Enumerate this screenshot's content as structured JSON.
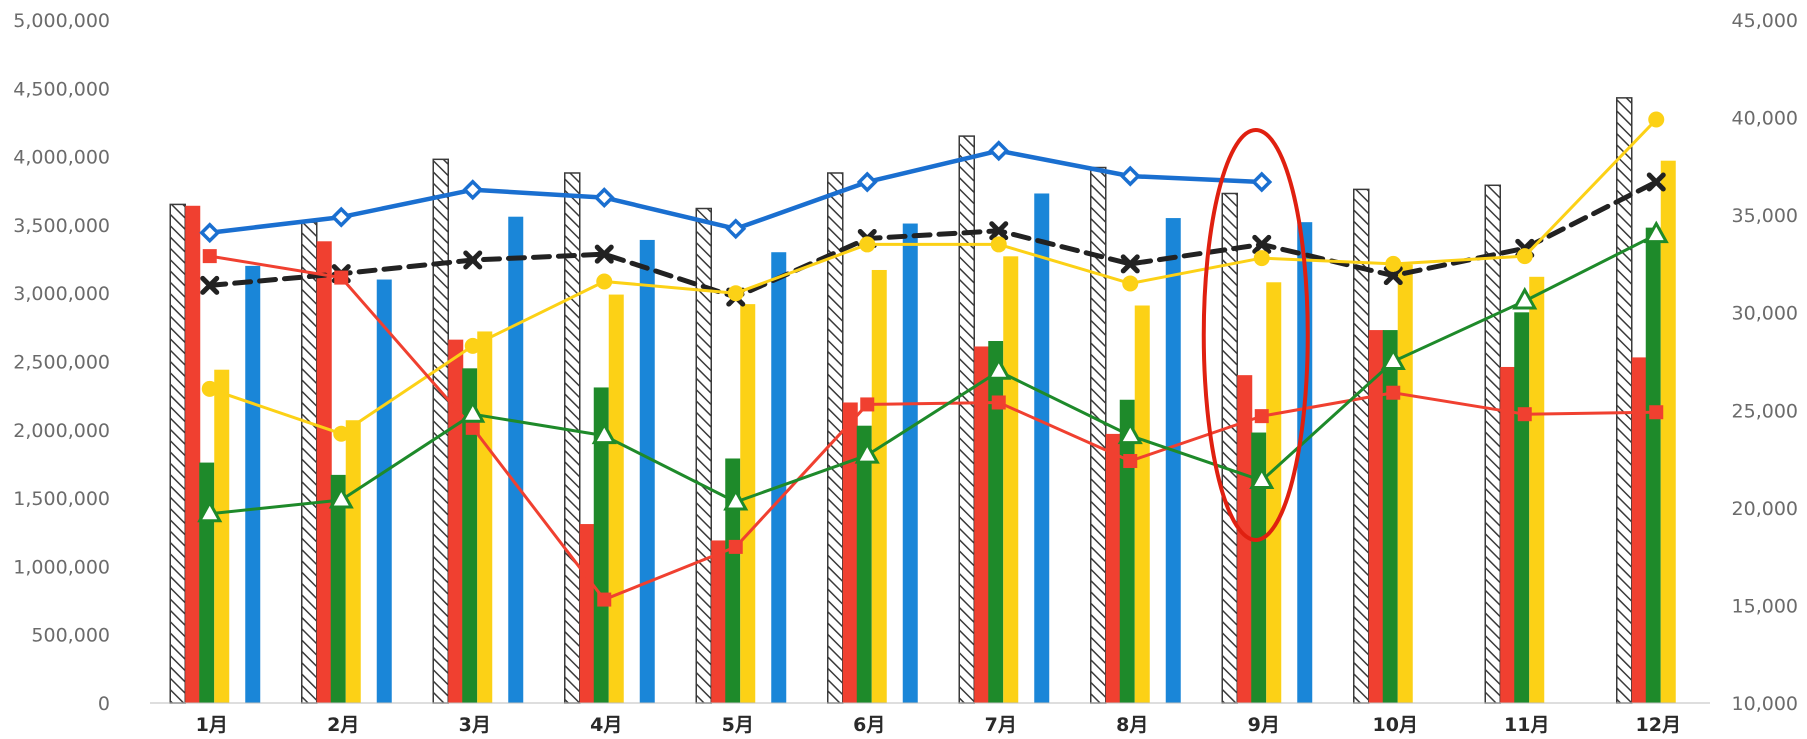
{
  "colors": {
    "hatch_stroke": "#3a3a3a",
    "red": "#f04030",
    "green": "#1e8a2a",
    "yellow": "#fcd116",
    "blue": "#1a86d8",
    "blue_line": "#1a6fd0",
    "black_line": "#222222",
    "highlight_ellipse": "#e02010",
    "text_axis": "#6b6b6b",
    "text_x": "#2a2a2a"
  },
  "chart_data": {
    "type": "bar",
    "categories": [
      "1月",
      "2月",
      "3月",
      "4月",
      "5月",
      "6月",
      "7月",
      "8月",
      "9月",
      "10月",
      "11月",
      "12月"
    ],
    "y_left": {
      "lim": [
        0,
        5000000
      ],
      "ticks": [
        0,
        500000,
        1000000,
        1500000,
        2000000,
        2500000,
        3000000,
        3500000,
        4000000,
        4500000,
        5000000
      ],
      "tick_labels": [
        "0",
        "500,000",
        "1,000,000",
        "1,500,000",
        "2,000,000",
        "2,500,000",
        "3,000,000",
        "3,500,000",
        "4,000,000",
        "4,500,000",
        "5,000,000"
      ]
    },
    "y_right": {
      "lim": [
        10000,
        45000
      ],
      "ticks": [
        10000,
        15000,
        20000,
        25000,
        30000,
        35000,
        40000,
        45000
      ],
      "tick_labels": [
        "10,000",
        "15,000",
        "20,000",
        "25,000",
        "30,000",
        "35,000",
        "40,000",
        "45,000"
      ]
    },
    "bar_series": [
      {
        "style": "hatched",
        "values": [
          3650000,
          3520000,
          3980000,
          3880000,
          3620000,
          3880000,
          4150000,
          3920000,
          3730000,
          3760000,
          3790000,
          4430000
        ]
      },
      {
        "color": "red",
        "values": [
          3640000,
          3380000,
          2660000,
          1310000,
          1190000,
          2200000,
          2610000,
          1970000,
          2400000,
          2730000,
          2460000,
          2530000
        ]
      },
      {
        "color": "green",
        "values": [
          1760000,
          1670000,
          2450000,
          2310000,
          1790000,
          2030000,
          2650000,
          2220000,
          1980000,
          2730000,
          2860000,
          3480000
        ]
      },
      {
        "color": "yellow",
        "values": [
          2440000,
          2070000,
          2720000,
          2990000,
          2920000,
          3170000,
          3270000,
          2910000,
          3080000,
          3210000,
          3120000,
          3970000
        ]
      },
      {
        "color": "blue",
        "values": [
          3200000,
          3100000,
          3560000,
          3390000,
          3300000,
          3510000,
          3730000,
          3550000,
          3520000,
          null,
          null,
          null
        ]
      }
    ],
    "line_series": [
      {
        "color": "blue_line",
        "marker": "diamond",
        "axis": "right",
        "values": [
          34100,
          34900,
          36300,
          35900,
          34300,
          36700,
          38300,
          37000,
          36700,
          null,
          null,
          null
        ]
      },
      {
        "color": "black_line",
        "marker": "x",
        "dashed": true,
        "axis": "right",
        "values": [
          31400,
          32000,
          32700,
          33000,
          30800,
          33800,
          34200,
          32500,
          33500,
          31900,
          33300,
          36700
        ]
      },
      {
        "color": "yellow",
        "marker": "circle",
        "axis": "right",
        "values": [
          26100,
          23800,
          28300,
          31600,
          31000,
          33500,
          33500,
          31500,
          32800,
          32500,
          32900,
          39900
        ]
      },
      {
        "color": "red",
        "marker": "square",
        "axis": "right",
        "values": [
          32900,
          31800,
          24100,
          15300,
          18000,
          25300,
          25400,
          22400,
          24700,
          25900,
          24800,
          24900
        ]
      },
      {
        "color": "green",
        "marker": "triangle",
        "axis": "right",
        "values": [
          19700,
          20400,
          24800,
          23700,
          20300,
          22700,
          27000,
          23700,
          21400,
          27500,
          30600,
          34000
        ]
      }
    ],
    "annotations": [
      {
        "shape": "ellipse",
        "target_category": "9月"
      }
    ],
    "grid": false,
    "legend": "none"
  }
}
